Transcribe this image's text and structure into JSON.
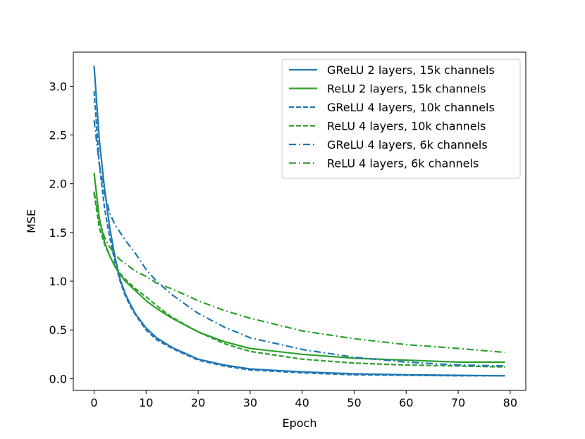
{
  "chart_data": {
    "type": "line",
    "title": "",
    "xlabel": "Epoch",
    "ylabel": "MSE",
    "xlim": [
      -4,
      83
    ],
    "ylim": [
      -0.12,
      3.35
    ],
    "xticks": [
      0,
      10,
      20,
      30,
      40,
      50,
      60,
      70,
      80
    ],
    "yticks": [
      0.0,
      0.5,
      1.0,
      1.5,
      2.0,
      2.5,
      3.0
    ],
    "xtick_labels": [
      "0",
      "10",
      "20",
      "30",
      "40",
      "50",
      "60",
      "70",
      "80"
    ],
    "ytick_labels": [
      "0.0",
      "0.5",
      "1.0",
      "1.5",
      "2.0",
      "2.5",
      "3.0"
    ],
    "grid": false,
    "legend_position": "top-right",
    "series": [
      {
        "name": "GReLU 2 layers, 15k channels",
        "color": "#1f77b4",
        "linestyle": "solid",
        "x": [
          0,
          1,
          2,
          3,
          4,
          5,
          6,
          7,
          8,
          10,
          12,
          15,
          20,
          25,
          30,
          40,
          50,
          60,
          70,
          79
        ],
        "y": [
          3.21,
          2.45,
          1.95,
          1.55,
          1.25,
          1.02,
          0.87,
          0.76,
          0.66,
          0.52,
          0.42,
          0.32,
          0.2,
          0.14,
          0.1,
          0.07,
          0.05,
          0.04,
          0.035,
          0.03
        ]
      },
      {
        "name": "ReLU 2 layers, 15k channels",
        "color": "#2ca02c",
        "linestyle": "solid",
        "x": [
          0,
          1,
          2,
          3,
          4,
          5,
          6,
          8,
          10,
          12,
          15,
          20,
          25,
          30,
          40,
          50,
          60,
          70,
          79
        ],
        "y": [
          2.11,
          1.65,
          1.4,
          1.26,
          1.15,
          1.07,
          1.0,
          0.9,
          0.8,
          0.72,
          0.62,
          0.48,
          0.38,
          0.31,
          0.25,
          0.21,
          0.19,
          0.17,
          0.17
        ]
      },
      {
        "name": "GReLU 4 layers, 10k channels",
        "color": "#1f77b4",
        "linestyle": "dashed",
        "x": [
          0,
          1,
          2,
          3,
          4,
          5,
          6,
          7,
          8,
          10,
          12,
          15,
          20,
          25,
          30,
          40,
          50,
          60,
          70,
          79
        ],
        "y": [
          2.95,
          2.2,
          1.75,
          1.45,
          1.2,
          1.0,
          0.85,
          0.74,
          0.65,
          0.5,
          0.4,
          0.31,
          0.19,
          0.13,
          0.09,
          0.06,
          0.04,
          0.035,
          0.03,
          0.03
        ]
      },
      {
        "name": "ReLU 4 layers, 10k channels",
        "color": "#2ca02c",
        "linestyle": "dashed",
        "x": [
          0,
          1,
          2,
          3,
          4,
          5,
          6,
          8,
          10,
          12,
          15,
          20,
          25,
          30,
          40,
          50,
          60,
          70,
          79
        ],
        "y": [
          1.9,
          1.55,
          1.38,
          1.26,
          1.16,
          1.08,
          1.02,
          0.92,
          0.84,
          0.75,
          0.63,
          0.48,
          0.36,
          0.28,
          0.2,
          0.16,
          0.14,
          0.13,
          0.12
        ]
      },
      {
        "name": "GReLU 4 layers, 6k channels",
        "color": "#1f77b4",
        "linestyle": "dashdot",
        "x": [
          0,
          1,
          2,
          3,
          4,
          5,
          6,
          8,
          10,
          12,
          15,
          20,
          25,
          30,
          40,
          50,
          60,
          70,
          79
        ],
        "y": [
          2.65,
          2.2,
          1.9,
          1.7,
          1.58,
          1.5,
          1.42,
          1.28,
          1.12,
          1.0,
          0.86,
          0.67,
          0.53,
          0.42,
          0.3,
          0.22,
          0.17,
          0.14,
          0.13
        ]
      },
      {
        "name": "ReLU 4 layers, 6k channels",
        "color": "#2ca02c",
        "linestyle": "dashdot",
        "x": [
          0,
          1,
          2,
          3,
          4,
          5,
          6,
          8,
          10,
          12,
          15,
          20,
          25,
          30,
          40,
          50,
          60,
          70,
          79
        ],
        "y": [
          1.92,
          1.62,
          1.45,
          1.35,
          1.28,
          1.22,
          1.18,
          1.1,
          1.05,
          0.98,
          0.92,
          0.8,
          0.7,
          0.62,
          0.49,
          0.41,
          0.35,
          0.31,
          0.27
        ]
      }
    ]
  }
}
